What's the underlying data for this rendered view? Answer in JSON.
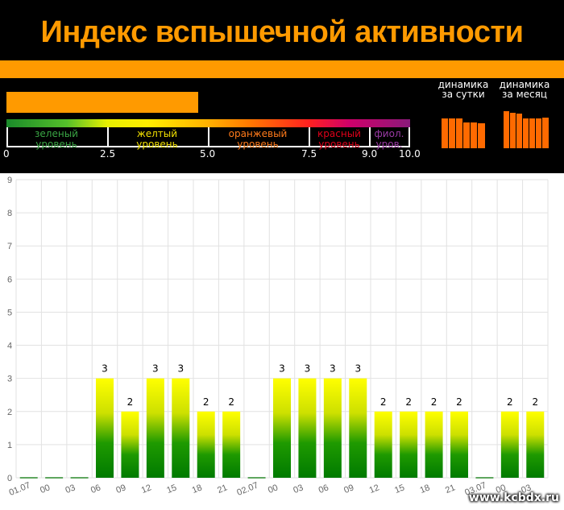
{
  "title": "Индекс вспышечной активности",
  "scale": {
    "levels": [
      {
        "label": "зеленый уровень",
        "color": "#3aa544"
      },
      {
        "label": "желтый уровень",
        "color": "#f2e000"
      },
      {
        "label": "оранжевый уровень",
        "color": "#ff7a1a"
      },
      {
        "label": "красный уровень",
        "color": "#e0001a"
      },
      {
        "label": "фиол. уров.",
        "color": "#9a3aa5"
      }
    ],
    "ticks": [
      "0",
      "2.5",
      "5.0",
      "7.5",
      "9.0",
      "10.0"
    ]
  },
  "dynamics": {
    "day_label": "динамика за сутки",
    "month_label": "динамика за месяц"
  },
  "watermark": "www.kcbdx.ru",
  "chart_data": {
    "type": "bar",
    "categories": [
      "01.07",
      "00",
      "03",
      "06",
      "09",
      "12",
      "15",
      "18",
      "21",
      "02.07",
      "00",
      "03",
      "06",
      "09",
      "12",
      "15",
      "18",
      "21",
      "03.07",
      "00",
      "03"
    ],
    "values": [
      0,
      0,
      0,
      3,
      2,
      3,
      3,
      2,
      2,
      0,
      3,
      3,
      3,
      3,
      2,
      2,
      2,
      2,
      0,
      2,
      2
    ],
    "ylim": [
      0,
      9
    ],
    "yticks": [
      0,
      1,
      2,
      3,
      4,
      5,
      6,
      7,
      8,
      9
    ],
    "grid": true,
    "colors": {
      "top": "#ffff00",
      "mid": "#8cc800",
      "bottom": "#007a00",
      "grid": "#e2e2e2"
    }
  }
}
